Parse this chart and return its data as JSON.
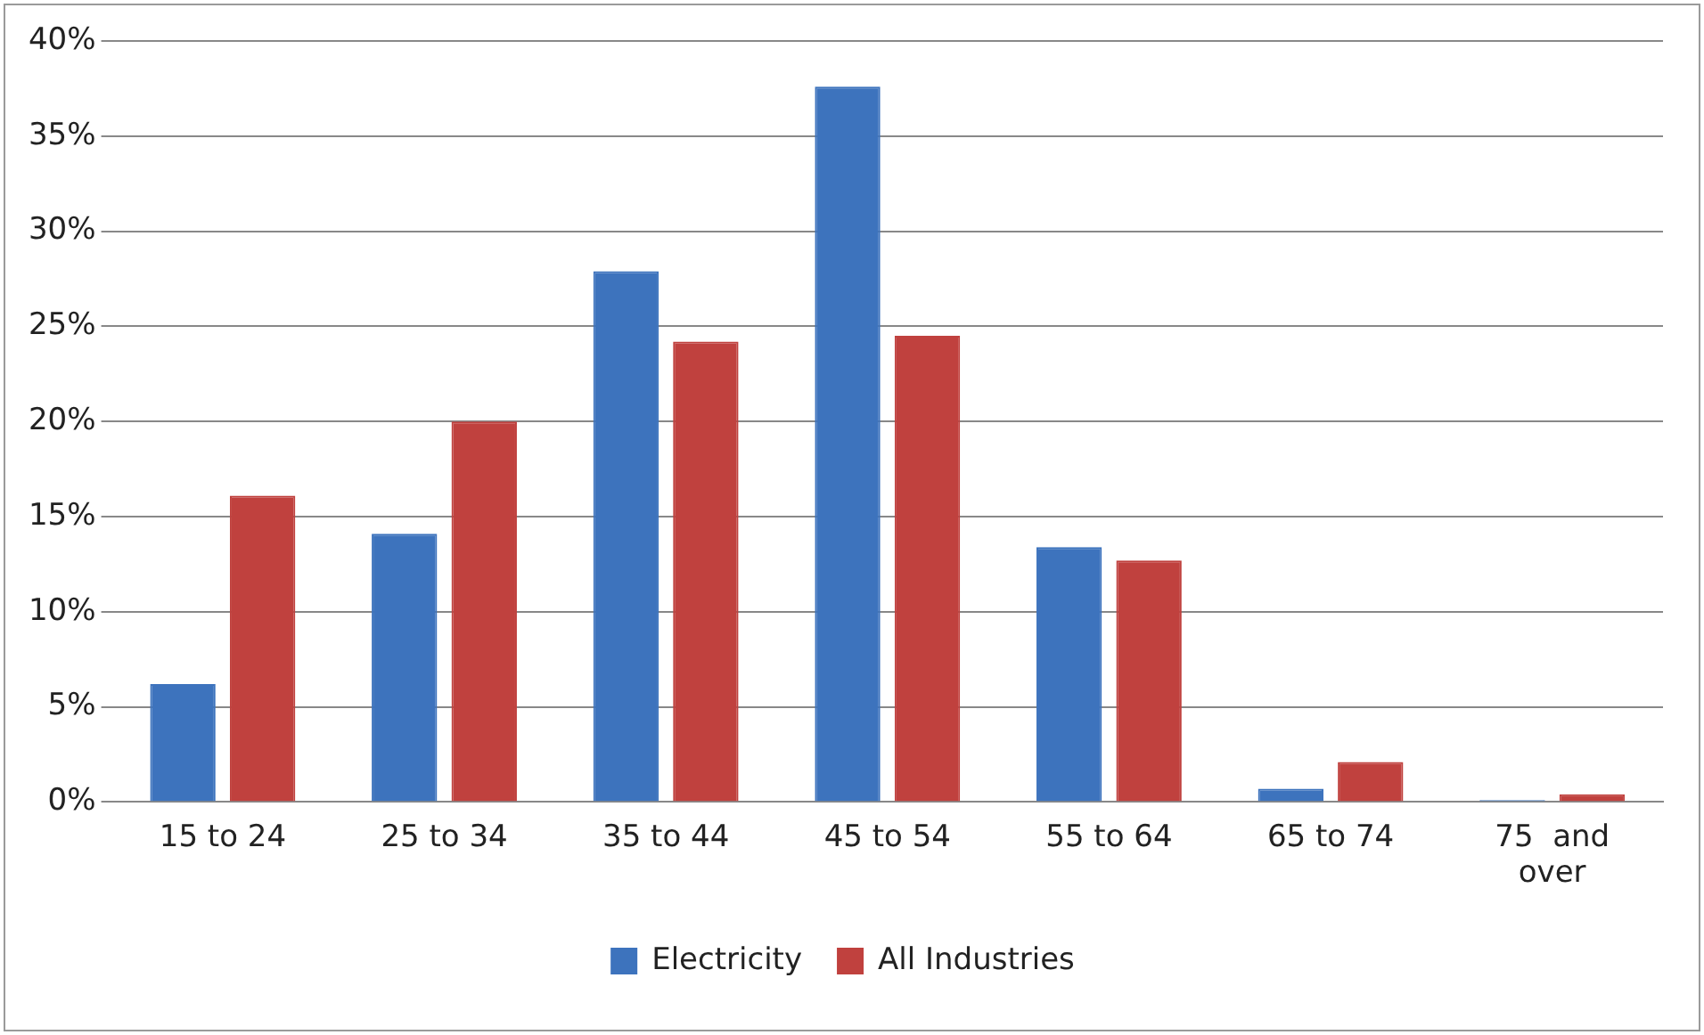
{
  "chart_data": {
    "type": "bar",
    "categories": [
      "15 to 24",
      "25 to 34",
      "35 to 44",
      "45 to 54",
      "55 to 64",
      "65 to 74",
      "75  and over"
    ],
    "series": [
      {
        "name": "Electricity",
        "color": "#3d73bd",
        "values": [
          6.2,
          14.1,
          27.9,
          37.6,
          13.4,
          0.7,
          0.1
        ]
      },
      {
        "name": "All Industries",
        "color": "#c0413e",
        "values": [
          16.1,
          20.0,
          24.2,
          24.5,
          12.7,
          2.1,
          0.4
        ]
      }
    ],
    "ylim": [
      0,
      40
    ],
    "yticks": [
      {
        "value": 0,
        "label": "0%"
      },
      {
        "value": 5,
        "label": "5%"
      },
      {
        "value": 10,
        "label": "10%"
      },
      {
        "value": 15,
        "label": "15%"
      },
      {
        "value": 20,
        "label": "20%"
      },
      {
        "value": 25,
        "label": "25%"
      },
      {
        "value": 30,
        "label": "30%"
      },
      {
        "value": 35,
        "label": "35%"
      },
      {
        "value": 40,
        "label": "40%"
      }
    ],
    "grid": "y",
    "legend": "bottom"
  }
}
